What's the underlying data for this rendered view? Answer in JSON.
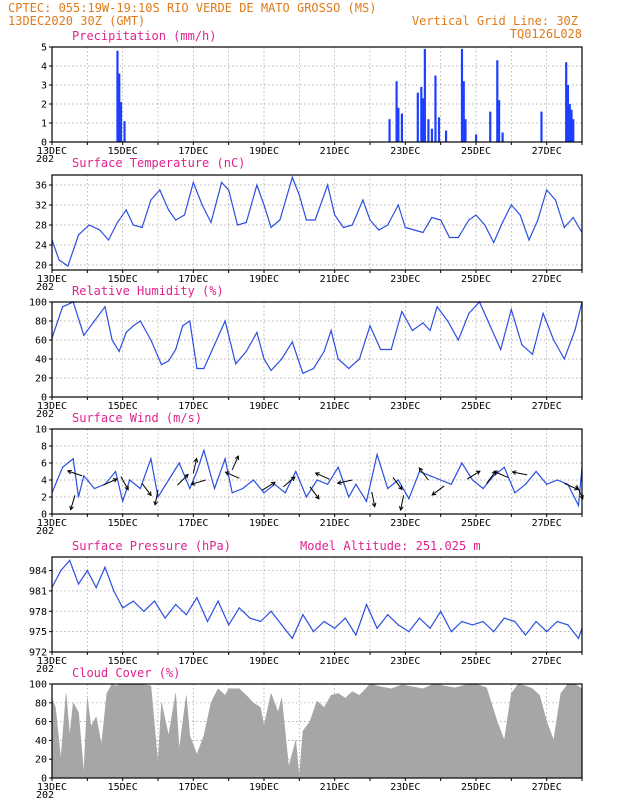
{
  "header": {
    "line1_left": "CPTEC:  055:19W-19:10S  RIO VERDE DE MATO GROSSO (MS)",
    "line2_left": "13DEC2020 30Z (GMT)",
    "line2_right": "Vertical Grid Line: 30Z",
    "line3_right": "TQ0126L028"
  },
  "colors": {
    "header_text": "#e07b1a",
    "panel_title": "#e0228f",
    "series_line": "#2a4fe0",
    "precip_bar": "#1f3fff",
    "cloud_fill": "#a6a6a6",
    "wind_arrow": "#000000"
  },
  "x_axis": {
    "start_day": 13,
    "end_day": 28,
    "tick_labels": [
      "13DEC",
      "15DEC",
      "17DEC",
      "19DEC",
      "21DEC",
      "23DEC",
      "25DEC",
      "27DEC"
    ],
    "tick_days": [
      13,
      15,
      17,
      19,
      21,
      23,
      25,
      27
    ],
    "below_first_label": "202"
  },
  "chart_data": [
    {
      "type": "bar",
      "panel": "precip",
      "title": "Precipitation (mm/h)",
      "ylim": [
        0,
        5
      ],
      "yticks": [
        "0",
        "1",
        "2",
        "3",
        "4",
        "5"
      ],
      "grid": true,
      "x_units": "day of December 2020",
      "bars": [
        {
          "x": 14.85,
          "y": 4.8
        },
        {
          "x": 14.9,
          "y": 3.6
        },
        {
          "x": 14.95,
          "y": 2.1
        },
        {
          "x": 15.05,
          "y": 1.1
        },
        {
          "x": 22.55,
          "y": 1.2
        },
        {
          "x": 22.75,
          "y": 3.2
        },
        {
          "x": 22.8,
          "y": 1.8
        },
        {
          "x": 22.9,
          "y": 1.5
        },
        {
          "x": 23.35,
          "y": 2.6
        },
        {
          "x": 23.45,
          "y": 2.9
        },
        {
          "x": 23.5,
          "y": 2.3
        },
        {
          "x": 23.55,
          "y": 4.9
        },
        {
          "x": 23.65,
          "y": 1.2
        },
        {
          "x": 23.75,
          "y": 0.7
        },
        {
          "x": 23.85,
          "y": 3.5
        },
        {
          "x": 23.95,
          "y": 1.3
        },
        {
          "x": 24.15,
          "y": 0.6
        },
        {
          "x": 24.6,
          "y": 4.9
        },
        {
          "x": 24.65,
          "y": 3.2
        },
        {
          "x": 24.7,
          "y": 1.2
        },
        {
          "x": 25.0,
          "y": 0.4
        },
        {
          "x": 25.4,
          "y": 1.6
        },
        {
          "x": 25.6,
          "y": 4.3
        },
        {
          "x": 25.65,
          "y": 2.2
        },
        {
          "x": 25.75,
          "y": 0.5
        },
        {
          "x": 26.85,
          "y": 1.6
        },
        {
          "x": 27.55,
          "y": 4.2
        },
        {
          "x": 27.6,
          "y": 3.0
        },
        {
          "x": 27.65,
          "y": 2.0
        },
        {
          "x": 27.7,
          "y": 1.7
        },
        {
          "x": 27.75,
          "y": 1.2
        }
      ]
    },
    {
      "type": "line",
      "panel": "temp",
      "title": "Surface Temperature (nC)",
      "ylim": [
        19,
        38
      ],
      "yticks": [
        20,
        24,
        28,
        32,
        36
      ],
      "grid": true,
      "x_units": "day of December 2020",
      "x": [
        13.0,
        13.2,
        13.45,
        13.75,
        14.05,
        14.35,
        14.6,
        14.85,
        15.1,
        15.3,
        15.55,
        15.8,
        16.05,
        16.3,
        16.5,
        16.75,
        17.0,
        17.25,
        17.5,
        17.8,
        18.0,
        18.25,
        18.5,
        18.8,
        19.0,
        19.2,
        19.45,
        19.8,
        20.0,
        20.2,
        20.45,
        20.8,
        21.0,
        21.25,
        21.5,
        21.8,
        22.0,
        22.25,
        22.5,
        22.8,
        23.0,
        23.25,
        23.5,
        23.75,
        24.0,
        24.25,
        24.5,
        24.8,
        25.0,
        25.25,
        25.5,
        25.75,
        26.0,
        26.25,
        26.5,
        26.75,
        27.0,
        27.25,
        27.5,
        27.75,
        28.0
      ],
      "y": [
        25.0,
        21.0,
        19.8,
        26.0,
        28.0,
        27.0,
        25.0,
        28.5,
        31.0,
        28.0,
        27.5,
        33.0,
        35.0,
        31.0,
        29.0,
        30.0,
        36.5,
        32.0,
        28.5,
        36.5,
        35.0,
        28.0,
        28.5,
        36.0,
        32.0,
        27.5,
        29.0,
        37.5,
        34.0,
        29.0,
        29.0,
        36.0,
        30.0,
        27.5,
        28.0,
        33.0,
        29.0,
        27.0,
        28.0,
        32.0,
        27.5,
        27.0,
        26.5,
        29.5,
        29.0,
        25.5,
        25.5,
        29.0,
        30.0,
        28.0,
        24.5,
        28.5,
        32.0,
        30.0,
        25.0,
        29.0,
        35.0,
        33.0,
        27.5,
        29.5,
        26.5
      ]
    },
    {
      "type": "line",
      "panel": "rh",
      "title": "Relative Humidity (%)",
      "ylim": [
        0,
        100
      ],
      "yticks": [
        0,
        20,
        40,
        60,
        80,
        100
      ],
      "grid": true,
      "x_units": "day of December 2020",
      "x": [
        13.0,
        13.3,
        13.6,
        13.9,
        14.2,
        14.5,
        14.7,
        14.9,
        15.1,
        15.3,
        15.5,
        15.8,
        16.1,
        16.3,
        16.5,
        16.7,
        16.9,
        17.1,
        17.3,
        17.6,
        17.9,
        18.2,
        18.5,
        18.8,
        19.0,
        19.2,
        19.5,
        19.8,
        20.1,
        20.4,
        20.7,
        20.9,
        21.1,
        21.4,
        21.7,
        22.0,
        22.3,
        22.6,
        22.9,
        23.2,
        23.5,
        23.7,
        23.9,
        24.2,
        24.5,
        24.8,
        25.1,
        25.4,
        25.7,
        26.0,
        26.3,
        26.6,
        26.9,
        27.2,
        27.5,
        27.8,
        28.0
      ],
      "y": [
        62,
        95,
        100,
        65,
        80,
        95,
        60,
        48,
        68,
        75,
        80,
        60,
        34,
        38,
        50,
        75,
        80,
        30,
        30,
        55,
        80,
        35,
        48,
        68,
        40,
        28,
        40,
        58,
        25,
        30,
        48,
        70,
        40,
        30,
        40,
        75,
        50,
        50,
        90,
        70,
        78,
        70,
        95,
        80,
        60,
        88,
        100,
        75,
        50,
        92,
        55,
        45,
        88,
        60,
        40,
        70,
        100
      ]
    },
    {
      "type": "line",
      "panel": "wind",
      "title": "Surface Wind (m/s)",
      "ylim": [
        0,
        10
      ],
      "yticks": [
        0,
        2,
        4,
        6,
        8,
        10
      ],
      "grid": true,
      "x_units": "day of December 2020",
      "x": [
        13.0,
        13.3,
        13.6,
        13.75,
        13.9,
        14.2,
        14.5,
        14.8,
        15.0,
        15.2,
        15.5,
        15.8,
        16.0,
        16.3,
        16.6,
        16.9,
        17.1,
        17.3,
        17.6,
        17.9,
        18.1,
        18.4,
        18.7,
        19.0,
        19.3,
        19.6,
        19.9,
        20.2,
        20.5,
        20.8,
        21.1,
        21.4,
        21.6,
        21.9,
        22.2,
        22.5,
        22.8,
        23.1,
        23.4,
        23.7,
        24.0,
        24.3,
        24.6,
        24.9,
        25.2,
        25.5,
        25.8,
        26.1,
        26.4,
        26.7,
        27.0,
        27.3,
        27.6,
        27.9,
        28.0
      ],
      "y": [
        2.5,
        5.5,
        6.5,
        2.0,
        4.5,
        3.0,
        3.5,
        5.0,
        1.5,
        4.0,
        3.0,
        6.5,
        2.0,
        4.0,
        6.0,
        3.0,
        5.0,
        7.5,
        3.0,
        6.5,
        2.5,
        3.0,
        4.0,
        2.5,
        3.5,
        2.5,
        5.0,
        2.0,
        4.0,
        3.5,
        5.5,
        2.0,
        3.5,
        1.5,
        7.0,
        3.0,
        4.0,
        1.8,
        5.0,
        4.5,
        4.0,
        3.5,
        6.0,
        4.0,
        3.0,
        4.5,
        5.5,
        2.5,
        3.5,
        5.0,
        3.5,
        4.0,
        3.5,
        1.0,
        5.5
      ]
    },
    {
      "type": "line",
      "panel": "pres",
      "title": "Surface Pressure (hPa)",
      "annotation": "Model Altitude: 251.025 m",
      "ylim": [
        972,
        986
      ],
      "yticks": [
        972,
        975,
        978,
        981,
        984
      ],
      "grid": true,
      "x_units": "day of December 2020",
      "x": [
        13.0,
        13.25,
        13.5,
        13.75,
        14.0,
        14.25,
        14.5,
        14.75,
        15.0,
        15.3,
        15.6,
        15.9,
        16.2,
        16.5,
        16.8,
        17.1,
        17.4,
        17.7,
        18.0,
        18.3,
        18.6,
        18.9,
        19.2,
        19.5,
        19.8,
        20.1,
        20.4,
        20.7,
        21.0,
        21.3,
        21.6,
        21.9,
        22.2,
        22.5,
        22.8,
        23.1,
        23.4,
        23.7,
        24.0,
        24.3,
        24.6,
        24.9,
        25.2,
        25.5,
        25.8,
        26.1,
        26.4,
        26.7,
        27.0,
        27.3,
        27.6,
        27.9,
        28.0
      ],
      "y": [
        981.5,
        984.0,
        985.5,
        982.0,
        984.0,
        981.5,
        984.5,
        981.0,
        978.5,
        979.5,
        978.0,
        979.5,
        977.0,
        979.0,
        977.5,
        980.0,
        976.5,
        979.5,
        976.0,
        978.5,
        977.0,
        976.5,
        978.0,
        976.0,
        974.0,
        977.5,
        975.0,
        976.5,
        975.5,
        977.0,
        974.5,
        979.0,
        975.5,
        977.5,
        976.0,
        975.0,
        977.0,
        975.5,
        978.0,
        975.0,
        976.5,
        976.0,
        976.5,
        975.0,
        977.0,
        976.5,
        974.5,
        976.5,
        975.0,
        976.5,
        976.0,
        974.0,
        975.5
      ]
    },
    {
      "type": "area",
      "panel": "cloud",
      "title": "Cloud Cover (%)",
      "ylim": [
        0,
        100
      ],
      "yticks": [
        0,
        20,
        40,
        60,
        80,
        100
      ],
      "grid": true,
      "x_units": "day of December 2020",
      "x": [
        13.0,
        13.1,
        13.25,
        13.4,
        13.5,
        13.6,
        13.75,
        13.9,
        14.0,
        14.1,
        14.25,
        14.4,
        14.55,
        14.7,
        14.8,
        15.0,
        15.5,
        15.8,
        16.0,
        16.1,
        16.3,
        16.5,
        16.6,
        16.8,
        16.9,
        17.1,
        17.3,
        17.5,
        17.7,
        17.9,
        18.0,
        18.3,
        18.5,
        18.7,
        18.9,
        19.0,
        19.2,
        19.4,
        19.5,
        19.7,
        19.9,
        20.0,
        20.1,
        20.3,
        20.5,
        20.7,
        20.9,
        21.1,
        21.3,
        21.5,
        21.7,
        21.9,
        22.0,
        22.3,
        22.6,
        22.9,
        23.2,
        23.5,
        23.8,
        24.1,
        24.4,
        24.7,
        25.0,
        25.3,
        25.6,
        25.8,
        26.0,
        26.2,
        26.4,
        26.6,
        26.8,
        27.0,
        27.2,
        27.4,
        27.6,
        27.8,
        28.0
      ],
      "y": [
        85,
        75,
        20,
        90,
        45,
        80,
        70,
        5,
        85,
        55,
        65,
        35,
        90,
        100,
        98,
        100,
        100,
        98,
        15,
        80,
        45,
        90,
        30,
        88,
        45,
        25,
        45,
        80,
        95,
        88,
        95,
        95,
        88,
        80,
        75,
        55,
        90,
        70,
        85,
        12,
        40,
        0,
        50,
        60,
        82,
        75,
        88,
        90,
        85,
        92,
        88,
        96,
        100,
        97,
        95,
        99,
        97,
        95,
        100,
        98,
        96,
        99,
        100,
        96,
        60,
        40,
        90,
        100,
        98,
        95,
        88,
        60,
        40,
        90,
        100,
        100,
        95
      ]
    },
    {
      "type": "scatter",
      "panel": "wind",
      "title": "",
      "description": "wind direction arrows drawn at the wind speed curve",
      "x_units": "day of December 2020",
      "arrows": [
        {
          "x": 13.65,
          "y": 2.2,
          "dx": -0.3,
          "dy": -1.0
        },
        {
          "x": 13.85,
          "y": 4.5,
          "dx": -0.9,
          "dy": 0.3
        },
        {
          "x": 14.45,
          "y": 3.4,
          "dx": 0.9,
          "dy": 0.4
        },
        {
          "x": 14.95,
          "y": 4.4,
          "dx": 0.5,
          "dy": -0.9
        },
        {
          "x": 15.55,
          "y": 3.6,
          "dx": 0.6,
          "dy": -0.8
        },
        {
          "x": 16.0,
          "y": 2.8,
          "dx": -0.2,
          "dy": -1.0
        },
        {
          "x": 16.55,
          "y": 3.4,
          "dx": 0.7,
          "dy": 0.7
        },
        {
          "x": 17.0,
          "y": 4.8,
          "dx": 0.2,
          "dy": 0.9
        },
        {
          "x": 17.35,
          "y": 4.0,
          "dx": -1.0,
          "dy": -0.3
        },
        {
          "x": 18.1,
          "y": 5.2,
          "dx": 0.4,
          "dy": 0.9
        },
        {
          "x": 18.3,
          "y": 4.2,
          "dx": -0.9,
          "dy": 0.4
        },
        {
          "x": 18.95,
          "y": 2.8,
          "dx": 0.8,
          "dy": 0.5
        },
        {
          "x": 19.55,
          "y": 3.2,
          "dx": 0.7,
          "dy": 0.6
        },
        {
          "x": 20.3,
          "y": 3.2,
          "dx": 0.6,
          "dy": -0.8
        },
        {
          "x": 20.85,
          "y": 4.1,
          "dx": -0.9,
          "dy": 0.4
        },
        {
          "x": 21.5,
          "y": 4.0,
          "dx": -0.9,
          "dy": -0.2
        },
        {
          "x": 22.05,
          "y": 2.6,
          "dx": 0.2,
          "dy": -1.0
        },
        {
          "x": 22.65,
          "y": 4.3,
          "dx": 0.6,
          "dy": -0.8
        },
        {
          "x": 22.95,
          "y": 2.2,
          "dx": -0.2,
          "dy": -1.0
        },
        {
          "x": 23.65,
          "y": 4.0,
          "dx": -0.6,
          "dy": 0.8
        },
        {
          "x": 24.1,
          "y": 3.3,
          "dx": -0.8,
          "dy": -0.6
        },
        {
          "x": 24.75,
          "y": 4.1,
          "dx": 0.8,
          "dy": 0.5
        },
        {
          "x": 25.3,
          "y": 3.6,
          "dx": 0.6,
          "dy": 0.8
        },
        {
          "x": 25.9,
          "y": 4.3,
          "dx": -0.9,
          "dy": 0.4
        },
        {
          "x": 26.45,
          "y": 4.6,
          "dx": -1.0,
          "dy": 0.2
        },
        {
          "x": 27.5,
          "y": 3.6,
          "dx": 0.9,
          "dy": -0.4
        },
        {
          "x": 27.85,
          "y": 3.4,
          "dx": 0.4,
          "dy": -0.9
        }
      ]
    }
  ]
}
